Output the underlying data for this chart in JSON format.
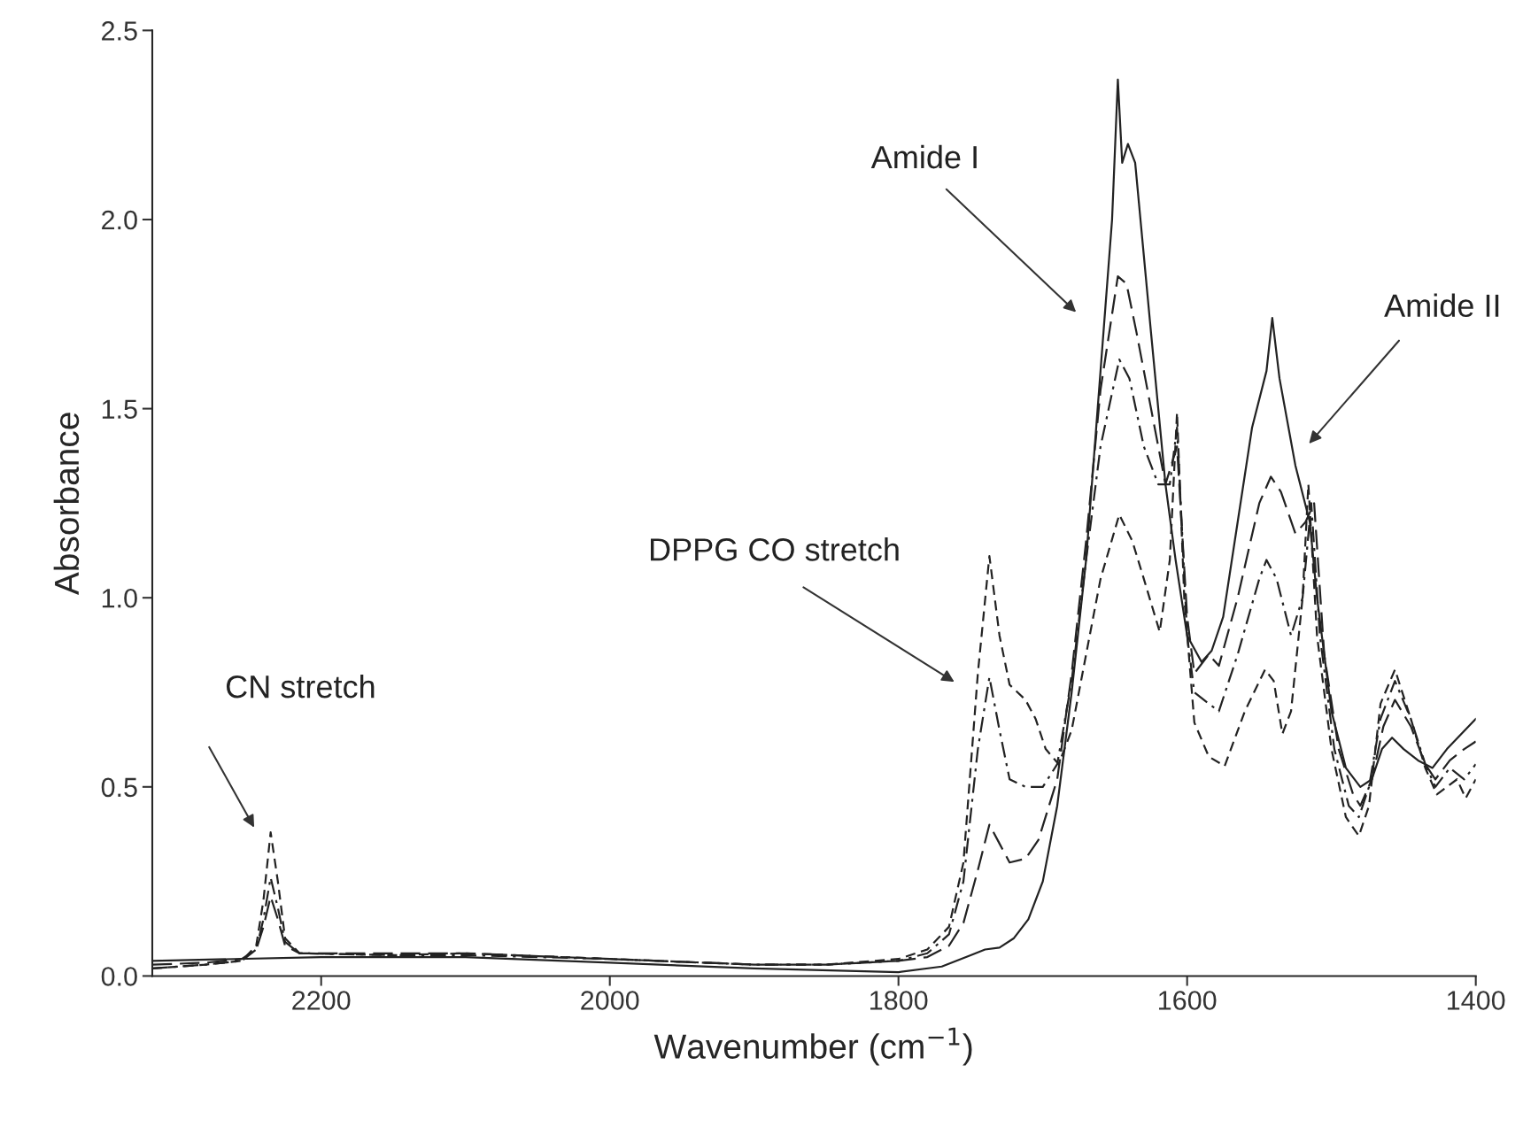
{
  "chart_data": {
    "type": "line",
    "xlabel": "Wavenumber (cm$^{−1}$)",
    "ylabel": "Absorbance",
    "xlim": [
      2317,
      1400
    ],
    "xticks": [
      2200,
      2000,
      1800,
      1600,
      1400
    ],
    "ylim": [
      0,
      2.5
    ],
    "yticks": [
      {
        "value": 0,
        "label": "0.0"
      },
      {
        "value": 0.5,
        "label": "0.5"
      },
      {
        "value": 1,
        "label": "1.0"
      },
      {
        "value": 1.5,
        "label": "1.5"
      },
      {
        "value": 2,
        "label": "2.0"
      },
      {
        "value": 2.5,
        "label": "2.5"
      }
    ],
    "marker": "none",
    "series": [
      {
        "color": "#222222",
        "line_style": "solid",
        "x": [
          2317,
          2200,
          2100,
          2000,
          1900,
          1800,
          1770,
          1750,
          1740,
          1730,
          1720,
          1710,
          1700,
          1690,
          1680,
          1670,
          1660,
          1652,
          1648,
          1645,
          1641,
          1636,
          1625,
          1615,
          1608,
          1600,
          1590,
          1583,
          1575,
          1565,
          1555,
          1545,
          1541,
          1536,
          1525,
          1515,
          1510,
          1500,
          1490,
          1480,
          1472,
          1465,
          1458,
          1450,
          1440,
          1430,
          1420,
          1400
        ],
        "values": [
          0.04,
          0.05,
          0.05,
          0.035,
          0.02,
          0.01,
          0.025,
          0.055,
          0.07,
          0.075,
          0.1,
          0.15,
          0.25,
          0.45,
          0.75,
          1.1,
          1.6,
          2.0,
          2.37,
          2.15,
          2.2,
          2.15,
          1.7,
          1.3,
          1.1,
          0.9,
          0.83,
          0.86,
          0.95,
          1.2,
          1.45,
          1.6,
          1.74,
          1.58,
          1.35,
          1.2,
          1.0,
          0.7,
          0.55,
          0.5,
          0.52,
          0.6,
          0.63,
          0.6,
          0.57,
          0.55,
          0.6,
          0.68
        ]
      },
      {
        "color": "#222222",
        "line_style": "long dashed",
        "x": [
          2317,
          2280,
          2255,
          2245,
          2240,
          2235,
          2230,
          2225,
          2215,
          2150,
          2100,
          2000,
          1900,
          1850,
          1800,
          1780,
          1765,
          1755,
          1745,
          1737,
          1730,
          1723,
          1712,
          1703,
          1690,
          1680,
          1670,
          1660,
          1648,
          1642,
          1635,
          1625,
          1615,
          1607,
          1600,
          1595,
          1585,
          1578,
          1565,
          1550,
          1542,
          1535,
          1525,
          1518,
          1512,
          1505,
          1495,
          1485,
          1480,
          1472,
          1464,
          1456,
          1445,
          1435,
          1428,
          1418,
          1408,
          1400
        ],
        "values": [
          0.03,
          0.035,
          0.045,
          0.07,
          0.13,
          0.21,
          0.15,
          0.08,
          0.06,
          0.06,
          0.06,
          0.045,
          0.03,
          0.03,
          0.04,
          0.05,
          0.08,
          0.14,
          0.28,
          0.4,
          0.35,
          0.3,
          0.31,
          0.36,
          0.52,
          0.8,
          1.15,
          1.55,
          1.85,
          1.83,
          1.7,
          1.5,
          1.3,
          1.4,
          0.95,
          0.8,
          0.85,
          0.82,
          1.0,
          1.25,
          1.32,
          1.28,
          1.17,
          1.2,
          1.25,
          0.85,
          0.6,
          0.48,
          0.45,
          0.52,
          0.66,
          0.73,
          0.66,
          0.56,
          0.52,
          0.57,
          0.6,
          0.62
        ]
      },
      {
        "color": "#222222",
        "line_style": "dashdot",
        "x": [
          2317,
          2280,
          2255,
          2245,
          2240,
          2235,
          2230,
          2225,
          2215,
          2150,
          2100,
          2000,
          1900,
          1850,
          1800,
          1780,
          1765,
          1755,
          1745,
          1737,
          1730,
          1723,
          1712,
          1700,
          1690,
          1680,
          1670,
          1660,
          1647,
          1640,
          1630,
          1620,
          1612,
          1607,
          1600,
          1595,
          1585,
          1578,
          1565,
          1550,
          1545,
          1538,
          1528,
          1520,
          1514,
          1508,
          1498,
          1488,
          1481,
          1474,
          1466,
          1456,
          1445,
          1435,
          1428,
          1418,
          1408,
          1400
        ],
        "values": [
          0.02,
          0.03,
          0.04,
          0.07,
          0.15,
          0.26,
          0.18,
          0.09,
          0.06,
          0.055,
          0.055,
          0.045,
          0.03,
          0.03,
          0.04,
          0.06,
          0.11,
          0.25,
          0.6,
          0.79,
          0.65,
          0.52,
          0.5,
          0.5,
          0.56,
          0.78,
          1.1,
          1.4,
          1.63,
          1.58,
          1.4,
          1.3,
          1.3,
          1.45,
          0.9,
          0.75,
          0.72,
          0.7,
          0.85,
          1.05,
          1.1,
          1.05,
          0.9,
          1.0,
          1.25,
          0.9,
          0.6,
          0.45,
          0.42,
          0.5,
          0.68,
          0.78,
          0.68,
          0.56,
          0.5,
          0.55,
          0.52,
          0.56
        ]
      },
      {
        "color": "#222222",
        "line_style": "dashed",
        "x": [
          2317,
          2280,
          2255,
          2245,
          2240,
          2235,
          2230,
          2225,
          2215,
          2150,
          2100,
          2000,
          1900,
          1850,
          1800,
          1780,
          1765,
          1755,
          1745,
          1737,
          1730,
          1723,
          1712,
          1705,
          1698,
          1689,
          1680,
          1670,
          1660,
          1647,
          1638,
          1630,
          1619,
          1612,
          1607,
          1602,
          1595,
          1585,
          1574,
          1560,
          1546,
          1540,
          1534,
          1528,
          1520,
          1516,
          1510,
          1500,
          1490,
          1481,
          1474,
          1466,
          1456,
          1445,
          1435,
          1427,
          1420,
          1413,
          1407,
          1400
        ],
        "values": [
          0.02,
          0.03,
          0.04,
          0.08,
          0.2,
          0.38,
          0.25,
          0.1,
          0.06,
          0.055,
          0.06,
          0.045,
          0.03,
          0.03,
          0.045,
          0.07,
          0.13,
          0.3,
          0.8,
          1.11,
          0.9,
          0.77,
          0.73,
          0.68,
          0.6,
          0.56,
          0.65,
          0.85,
          1.05,
          1.22,
          1.15,
          1.05,
          0.91,
          1.1,
          1.49,
          1.0,
          0.67,
          0.58,
          0.555,
          0.7,
          0.81,
          0.78,
          0.64,
          0.7,
          1.0,
          1.3,
          0.9,
          0.6,
          0.42,
          0.37,
          0.45,
          0.72,
          0.81,
          0.68,
          0.55,
          0.48,
          0.5,
          0.52,
          0.47,
          0.52
        ]
      }
    ],
    "annotations": [
      "CN stretch",
      "DPPG CO stretch",
      "Amide I",
      "Amide II"
    ]
  }
}
